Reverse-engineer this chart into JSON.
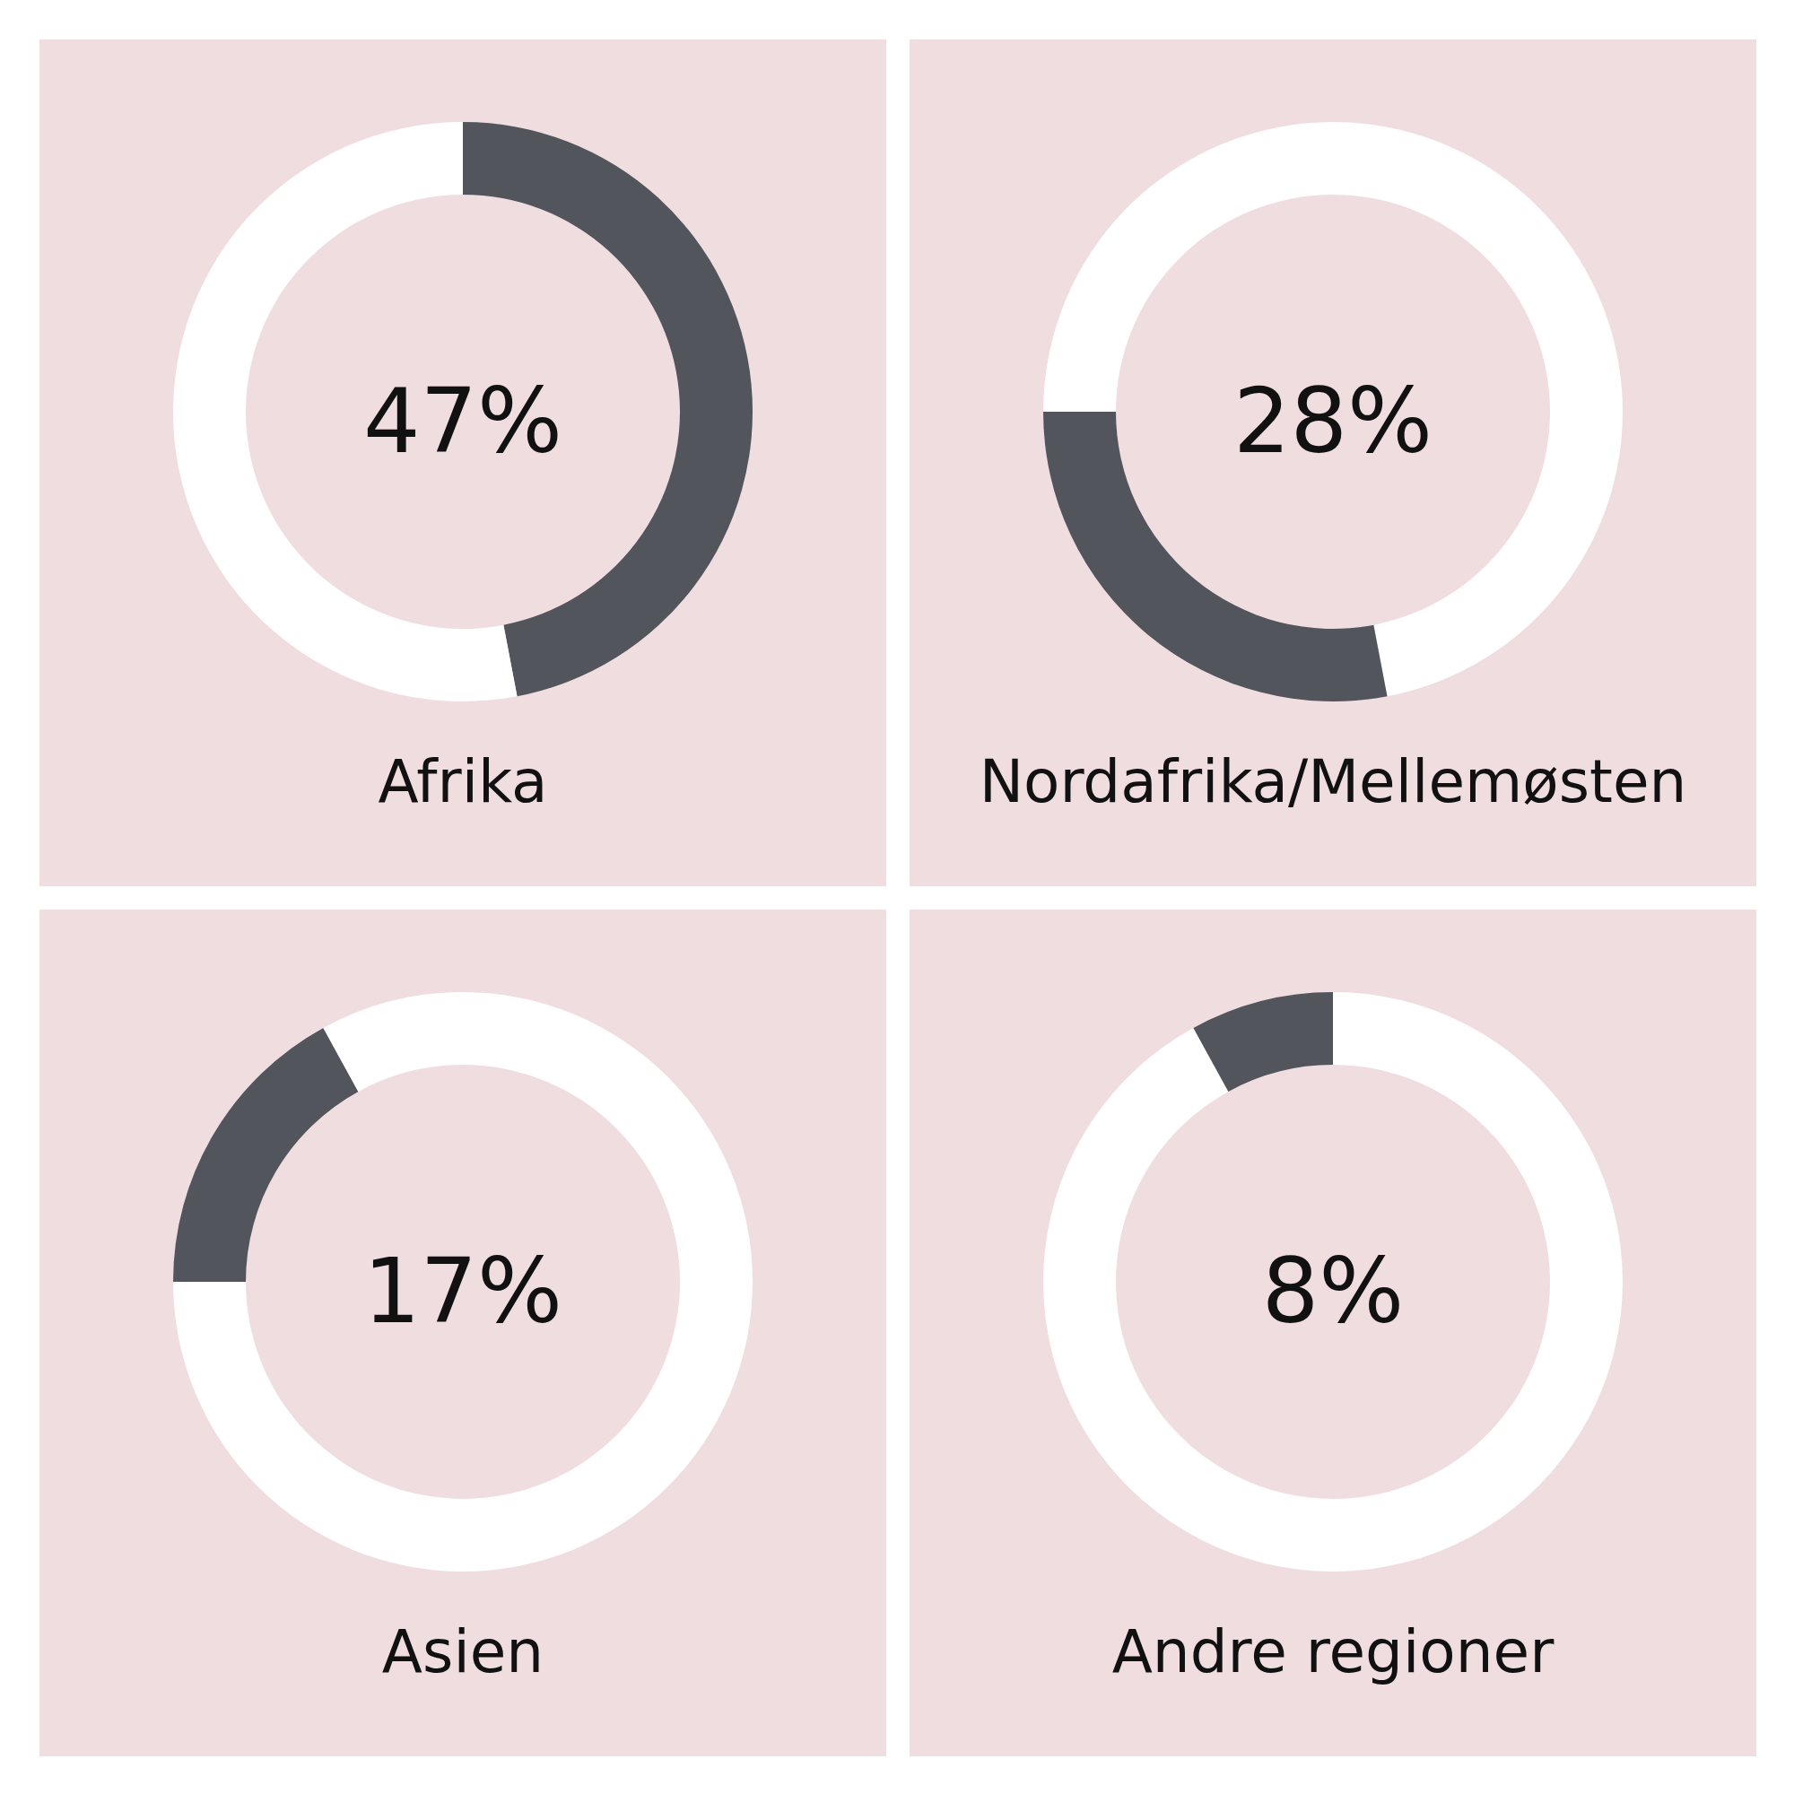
{
  "chart_data": [
    {
      "type": "donut",
      "title": "Afrika",
      "categories": [
        null,
        null
      ],
      "values": [
        47,
        53
      ],
      "colors": [
        "#52555c",
        "#ffffff"
      ],
      "annotations": [
        "47%"
      ]
    },
    {
      "type": "donut",
      "title": "Nordafrika/Mellemøsten",
      "categories": [
        null,
        null,
        null
      ],
      "values": [
        47,
        28,
        25
      ],
      "colors": [
        "#ffffff",
        "#52555c",
        "#ffffff"
      ],
      "annotations": [
        "28%"
      ]
    },
    {
      "type": "donut",
      "title": "Asien",
      "categories": [
        null,
        null,
        null
      ],
      "values": [
        75,
        17,
        8
      ],
      "colors": [
        "#ffffff",
        "#52555c",
        "#ffffff"
      ],
      "annotations": [
        "17%"
      ]
    },
    {
      "type": "donut",
      "title": "Andre regioner",
      "categories": [
        null,
        null
      ],
      "values": [
        92,
        8
      ],
      "colors": [
        "#ffffff",
        "#52555c"
      ],
      "annotations": [
        "8%"
      ]
    }
  ]
}
